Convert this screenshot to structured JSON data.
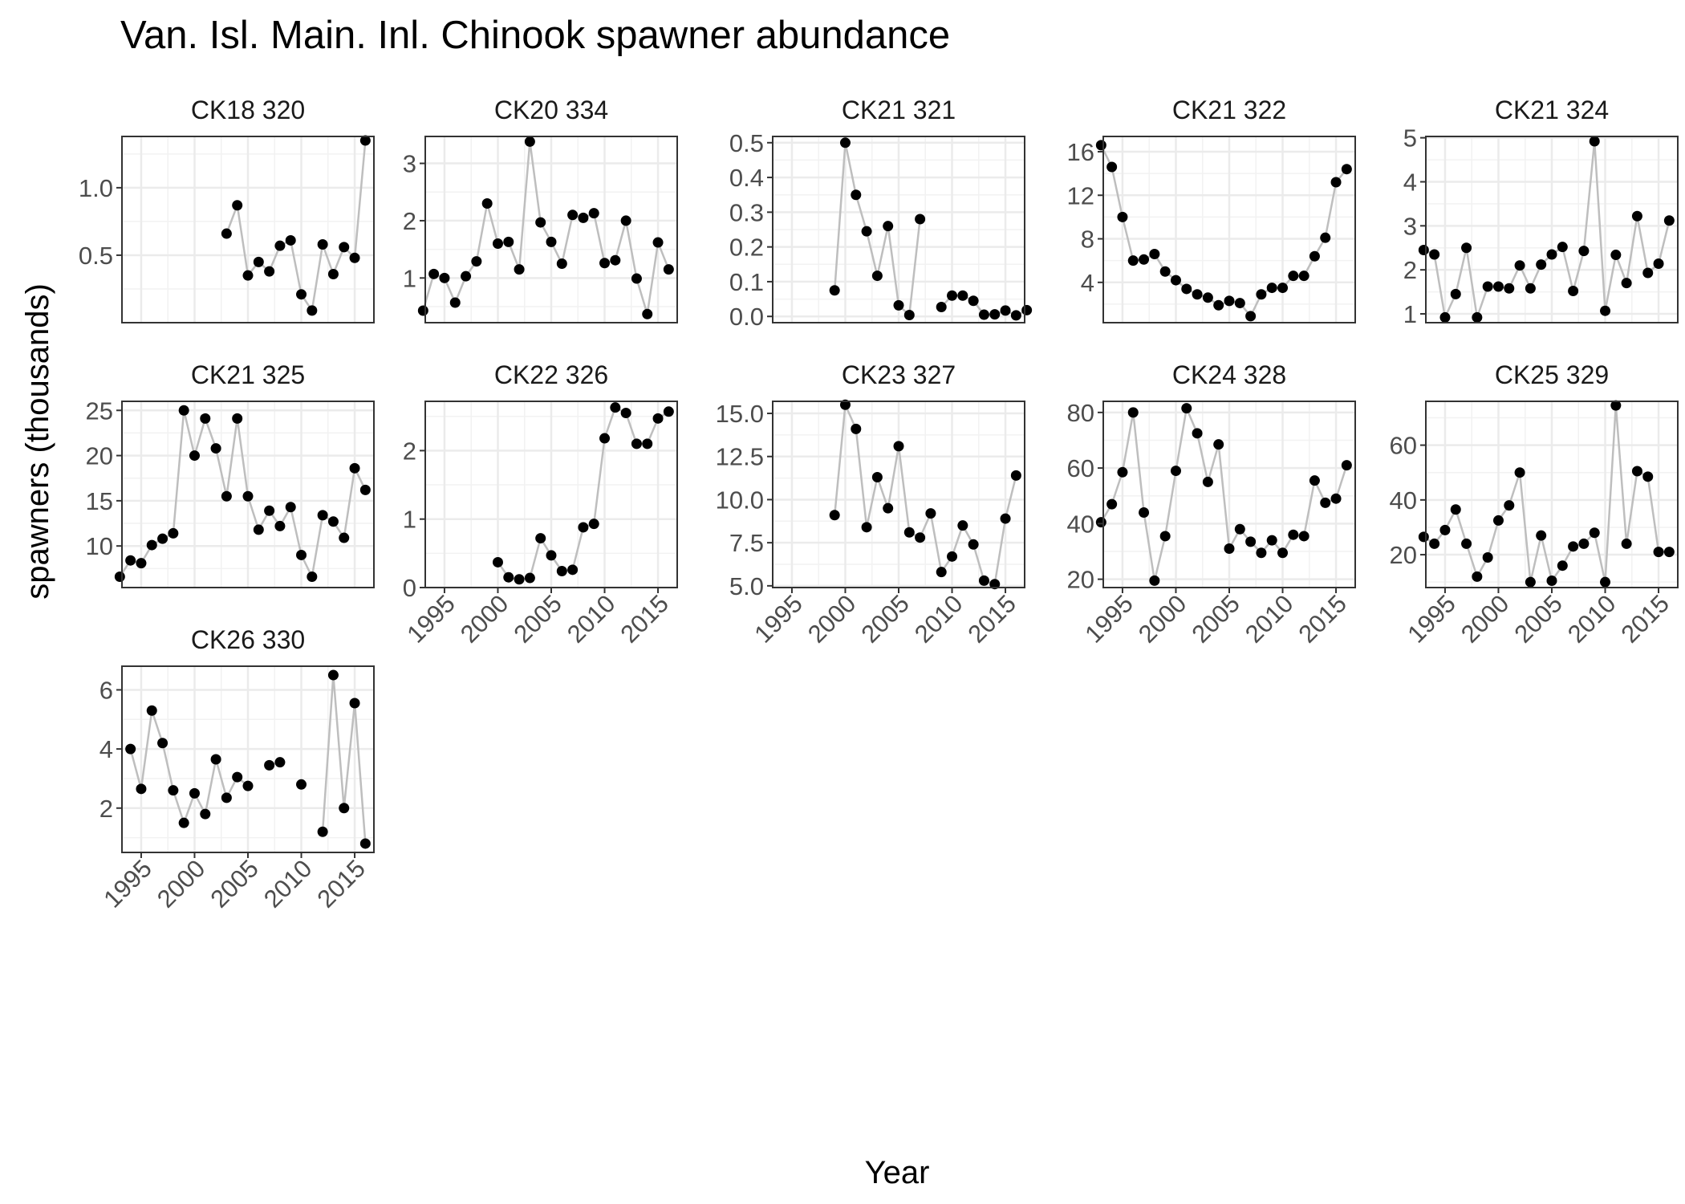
{
  "chart_data": {
    "type": "scatter",
    "title": "Van. Isl. Main. Inl. Chinook spawner abundance",
    "xlabel": "Year",
    "ylabel": "spawners (thousands)",
    "grid": true,
    "x_ticks": [
      1995,
      2000,
      2005,
      2010,
      2015
    ],
    "xlim": [
      1993.2,
      2016.8
    ],
    "line_color": "#bebebe",
    "point_color": "#000000",
    "panels": [
      {
        "name": "CK18 320",
        "ylim": [
          0.0,
          1.38
        ],
        "y_ticks": [
          0.5,
          1.0
        ],
        "y_tick_labels": [
          "0.5",
          "1.0"
        ],
        "show_x_axis": false,
        "x": [
          2003,
          2004,
          2005,
          2006,
          2007,
          2008,
          2009,
          2010,
          2011,
          2012,
          2013,
          2014,
          2015,
          2016
        ],
        "y": [
          0.66,
          0.87,
          0.35,
          0.45,
          0.38,
          0.57,
          0.61,
          0.21,
          0.09,
          0.58,
          0.36,
          0.56,
          0.48,
          1.35
        ]
      },
      {
        "name": "CK20 334",
        "ylim": [
          0.22,
          3.47
        ],
        "y_ticks": [
          1,
          2,
          3
        ],
        "y_tick_labels": [
          "1",
          "2",
          "3"
        ],
        "show_x_axis": false,
        "x": [
          1993,
          1994,
          1995,
          1996,
          1997,
          1998,
          1999,
          2000,
          2001,
          2002,
          2003,
          2004,
          2005,
          2006,
          2007,
          2008,
          2009,
          2010,
          2011,
          2012,
          2013,
          2014,
          2015,
          2016
        ],
        "y": [
          0.43,
          1.07,
          1.0,
          0.57,
          1.03,
          1.29,
          2.3,
          1.6,
          1.63,
          1.15,
          3.38,
          1.97,
          1.63,
          1.25,
          2.1,
          2.05,
          2.13,
          1.26,
          1.31,
          2.0,
          0.99,
          0.37,
          1.62,
          1.15
        ]
      },
      {
        "name": "CK21 321",
        "ylim": [
          -0.018,
          0.518
        ],
        "y_ticks": [
          0.0,
          0.1,
          0.2,
          0.3,
          0.4,
          0.5
        ],
        "y_tick_labels": [
          "0.0",
          "0.1",
          "0.2",
          "0.3",
          "0.4",
          "0.5"
        ],
        "show_x_axis": false,
        "x": [
          1999,
          2000,
          2001,
          2002,
          2003,
          2004,
          2005,
          2006,
          2007,
          2009,
          2010,
          2011,
          2012,
          2013,
          2014,
          2015,
          2016,
          2017
        ],
        "y": [
          0.075,
          0.5,
          0.35,
          0.245,
          0.117,
          0.26,
          0.032,
          0.004,
          0.28,
          0.027,
          0.06,
          0.06,
          0.045,
          0.005,
          0.006,
          0.017,
          0.003,
          0.018
        ]
      },
      {
        "name": "CK21 322",
        "ylim": [
          0.3,
          17.4
        ],
        "y_ticks": [
          4,
          8,
          12,
          16
        ],
        "y_tick_labels": [
          "4",
          "8",
          "12",
          "16"
        ],
        "show_x_axis": false,
        "x": [
          1993,
          1994,
          1995,
          1996,
          1997,
          1998,
          1999,
          2000,
          2001,
          2002,
          2003,
          2004,
          2005,
          2006,
          2007,
          2008,
          2009,
          2010,
          2011,
          2012,
          2013,
          2014,
          2015,
          2016
        ],
        "y": [
          16.6,
          14.6,
          10.0,
          6.0,
          6.1,
          6.6,
          5.0,
          4.2,
          3.4,
          2.9,
          2.6,
          1.9,
          2.3,
          2.1,
          0.9,
          2.9,
          3.5,
          3.5,
          4.6,
          4.6,
          6.4,
          8.1,
          13.2,
          14.4
        ]
      },
      {
        "name": "CK21 324",
        "ylim": [
          0.8,
          5.03
        ],
        "y_ticks": [
          1,
          2,
          3,
          4,
          5
        ],
        "y_tick_labels": [
          "1",
          "2",
          "3",
          "4",
          "5"
        ],
        "show_x_axis": false,
        "x": [
          1993,
          1994,
          1995,
          1996,
          1997,
          1998,
          1999,
          2000,
          2001,
          2002,
          2003,
          2004,
          2005,
          2006,
          2007,
          2008,
          2009,
          2010,
          2011,
          2012,
          2013,
          2014,
          2015,
          2016
        ],
        "y": [
          2.45,
          2.35,
          0.92,
          1.45,
          2.5,
          0.92,
          1.62,
          1.62,
          1.58,
          2.1,
          1.58,
          2.12,
          2.35,
          2.52,
          1.52,
          2.43,
          4.92,
          1.07,
          2.34,
          1.7,
          3.22,
          1.93,
          2.14,
          3.12
        ]
      },
      {
        "name": "CK21 325",
        "ylim": [
          5.4,
          26.0
        ],
        "y_ticks": [
          10,
          15,
          20,
          25
        ],
        "y_tick_labels": [
          "10",
          "15",
          "20",
          "25"
        ],
        "show_x_axis": false,
        "x": [
          1993,
          1994,
          1995,
          1996,
          1997,
          1998,
          1999,
          2000,
          2001,
          2002,
          2003,
          2004,
          2005,
          2006,
          2007,
          2008,
          2009,
          2010,
          2011,
          2012,
          2013,
          2014,
          2015,
          2016
        ],
        "y": [
          6.6,
          8.4,
          8.1,
          10.1,
          10.8,
          11.4,
          25.0,
          20.0,
          24.1,
          20.8,
          15.5,
          24.1,
          15.5,
          11.8,
          13.9,
          12.2,
          14.3,
          9.0,
          6.6,
          13.4,
          12.7,
          10.9,
          18.6,
          16.2
        ]
      },
      {
        "name": "CK22 326",
        "ylim": [
          0.0,
          2.72
        ],
        "y_ticks": [
          0,
          1,
          2
        ],
        "y_tick_labels": [
          "0",
          "1",
          "2"
        ],
        "show_x_axis": true,
        "x": [
          2000,
          2001,
          2002,
          2003,
          2004,
          2005,
          2006,
          2007,
          2008,
          2009,
          2010,
          2011,
          2012,
          2013,
          2014,
          2015,
          2016
        ],
        "y": [
          0.37,
          0.15,
          0.12,
          0.14,
          0.72,
          0.47,
          0.24,
          0.26,
          0.88,
          0.93,
          2.18,
          2.63,
          2.55,
          2.1,
          2.1,
          2.47,
          2.57
        ]
      },
      {
        "name": "CK23 327",
        "ylim": [
          4.9,
          15.7
        ],
        "y_ticks": [
          5.0,
          7.5,
          10.0,
          12.5,
          15.0
        ],
        "y_tick_labels": [
          "5.0",
          "7.5",
          "10.0",
          "12.5",
          "15.0"
        ],
        "show_x_axis": true,
        "x": [
          1999,
          2000,
          2001,
          2002,
          2003,
          2004,
          2005,
          2006,
          2007,
          2008,
          2009,
          2010,
          2011,
          2012,
          2013,
          2014,
          2015,
          2016
        ],
        "y": [
          9.1,
          15.5,
          14.1,
          8.4,
          11.3,
          9.5,
          13.1,
          8.1,
          7.8,
          9.2,
          5.8,
          6.7,
          8.5,
          7.4,
          5.3,
          5.1,
          8.9,
          11.4
        ]
      },
      {
        "name": "CK24 328",
        "ylim": [
          17.0,
          84.0
        ],
        "y_ticks": [
          20,
          40,
          60,
          80
        ],
        "y_tick_labels": [
          "20",
          "40",
          "60",
          "80"
        ],
        "show_x_axis": true,
        "x": [
          1993,
          1994,
          1995,
          1996,
          1997,
          1998,
          1999,
          2000,
          2001,
          2002,
          2003,
          2004,
          2005,
          2006,
          2007,
          2008,
          2009,
          2010,
          2011,
          2012,
          2013,
          2014,
          2015,
          2016
        ],
        "y": [
          40.5,
          47.0,
          58.5,
          80.0,
          44.0,
          19.5,
          35.5,
          59.0,
          81.5,
          72.5,
          55.0,
          68.5,
          31.0,
          38.0,
          33.5,
          29.5,
          34.0,
          29.5,
          36.0,
          35.5,
          55.5,
          47.5,
          49.0,
          61.0
        ]
      },
      {
        "name": "CK25 329",
        "ylim": [
          8.0,
          76.0
        ],
        "y_ticks": [
          20,
          40,
          60
        ],
        "y_tick_labels": [
          "20",
          "40",
          "60"
        ],
        "show_x_axis": true,
        "x": [
          1993,
          1994,
          1995,
          1996,
          1997,
          1998,
          1999,
          2000,
          2001,
          2002,
          2003,
          2004,
          2005,
          2006,
          2007,
          2008,
          2009,
          2010,
          2011,
          2012,
          2013,
          2014,
          2015,
          2016
        ],
        "y": [
          26.5,
          24.0,
          29.0,
          36.5,
          24.0,
          12.0,
          19.0,
          32.5,
          38.0,
          50.0,
          10.0,
          27.0,
          10.5,
          16.0,
          23.0,
          24.0,
          28.0,
          10.0,
          74.5,
          24.0,
          50.5,
          48.5,
          21.0,
          21.0
        ]
      },
      {
        "name": "CK26 330",
        "ylim": [
          0.5,
          6.8
        ],
        "y_ticks": [
          2,
          4,
          6
        ],
        "y_tick_labels": [
          "2",
          "4",
          "6"
        ],
        "show_x_axis": true,
        "x": [
          1994,
          1995,
          1996,
          1997,
          1998,
          1999,
          2000,
          2001,
          2002,
          2003,
          2004,
          2005,
          2007,
          2008,
          2010,
          2012,
          2013,
          2014,
          2015,
          2016
        ],
        "y": [
          4.0,
          2.65,
          5.3,
          4.2,
          2.6,
          1.5,
          2.5,
          1.8,
          3.65,
          2.35,
          3.05,
          2.75,
          3.45,
          3.55,
          2.8,
          1.2,
          6.5,
          2.0,
          5.55,
          0.8
        ]
      }
    ]
  }
}
